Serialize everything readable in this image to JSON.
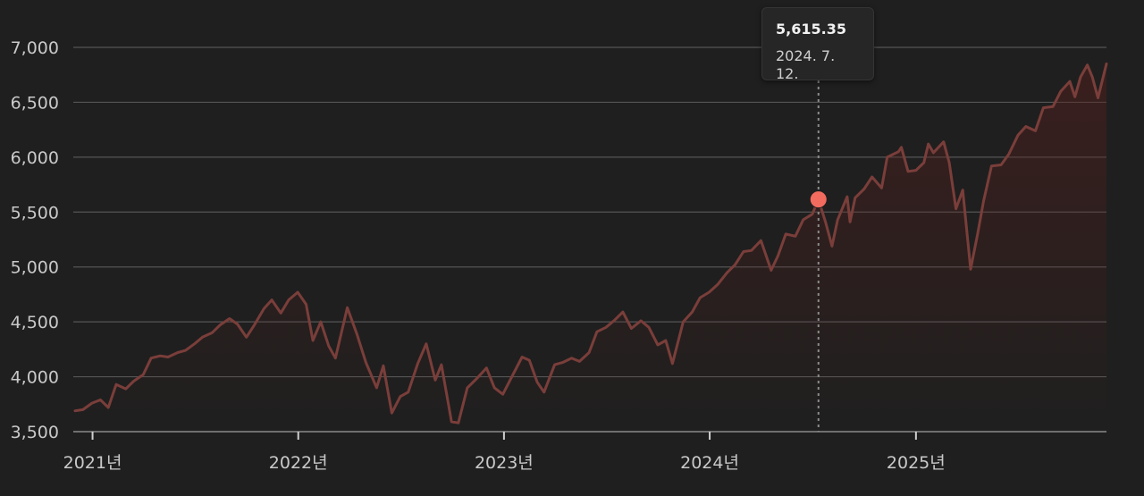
{
  "chart_data": {
    "type": "area",
    "y_ticks": [
      "7,000",
      "6,500",
      "6,000",
      "5,500",
      "5,000",
      "4,500",
      "4,000",
      "3,500"
    ],
    "x_ticks": [
      "2021년",
      "2022년",
      "2023년",
      "2024년",
      "2025년"
    ],
    "ylim": [
      3500,
      7000
    ],
    "x_range": [
      "2020-12-01",
      "2025-12-05"
    ],
    "grid": true,
    "colors": {
      "line": "#7a3e3a",
      "marker": "#f26b5f",
      "crosshair": "#8a8a8a",
      "grid": "#555555"
    },
    "tooltip": {
      "value": "5,615.35",
      "date": "2024. 7. 12."
    },
    "highlight": {
      "x": "2024-07-12",
      "y": 5615.35
    },
    "series": [
      {
        "points": [
          [
            "2020-12-01",
            3690
          ],
          [
            "2020-12-15",
            3700
          ],
          [
            "2020-12-31",
            3760
          ],
          [
            "2021-01-15",
            3790
          ],
          [
            "2021-01-29",
            3720
          ],
          [
            "2021-02-12",
            3930
          ],
          [
            "2021-03-01",
            3890
          ],
          [
            "2021-03-15",
            3960
          ],
          [
            "2021-04-01",
            4020
          ],
          [
            "2021-04-15",
            4170
          ],
          [
            "2021-05-01",
            4190
          ],
          [
            "2021-05-15",
            4180
          ],
          [
            "2021-06-01",
            4220
          ],
          [
            "2021-06-15",
            4240
          ],
          [
            "2021-07-01",
            4300
          ],
          [
            "2021-07-15",
            4360
          ],
          [
            "2021-08-01",
            4400
          ],
          [
            "2021-08-15",
            4470
          ],
          [
            "2021-09-01",
            4530
          ],
          [
            "2021-09-15",
            4480
          ],
          [
            "2021-10-01",
            4360
          ],
          [
            "2021-10-15",
            4470
          ],
          [
            "2021-11-01",
            4620
          ],
          [
            "2021-11-15",
            4700
          ],
          [
            "2021-12-01",
            4580
          ],
          [
            "2021-12-15",
            4700
          ],
          [
            "2021-12-31",
            4770
          ],
          [
            "2022-01-15",
            4660
          ],
          [
            "2022-01-27",
            4330
          ],
          [
            "2022-02-10",
            4500
          ],
          [
            "2022-02-24",
            4280
          ],
          [
            "2022-03-08",
            4170
          ],
          [
            "2022-03-29",
            4630
          ],
          [
            "2022-04-15",
            4390
          ],
          [
            "2022-05-01",
            4130
          ],
          [
            "2022-05-20",
            3900
          ],
          [
            "2022-06-01",
            4100
          ],
          [
            "2022-06-16",
            3670
          ],
          [
            "2022-07-01",
            3820
          ],
          [
            "2022-07-15",
            3860
          ],
          [
            "2022-08-01",
            4120
          ],
          [
            "2022-08-16",
            4300
          ],
          [
            "2022-09-01",
            3970
          ],
          [
            "2022-09-12",
            4110
          ],
          [
            "2022-09-30",
            3590
          ],
          [
            "2022-10-12",
            3580
          ],
          [
            "2022-10-28",
            3900
          ],
          [
            "2022-11-15",
            3990
          ],
          [
            "2022-12-01",
            4080
          ],
          [
            "2022-12-15",
            3900
          ],
          [
            "2022-12-30",
            3840
          ],
          [
            "2023-01-15",
            4000
          ],
          [
            "2023-02-02",
            4180
          ],
          [
            "2023-02-15",
            4150
          ],
          [
            "2023-03-01",
            3950
          ],
          [
            "2023-03-13",
            3860
          ],
          [
            "2023-04-01",
            4110
          ],
          [
            "2023-04-15",
            4130
          ],
          [
            "2023-05-01",
            4170
          ],
          [
            "2023-05-15",
            4140
          ],
          [
            "2023-06-01",
            4220
          ],
          [
            "2023-06-15",
            4410
          ],
          [
            "2023-07-01",
            4450
          ],
          [
            "2023-07-15",
            4510
          ],
          [
            "2023-07-31",
            4590
          ],
          [
            "2023-08-15",
            4440
          ],
          [
            "2023-09-01",
            4510
          ],
          [
            "2023-09-15",
            4450
          ],
          [
            "2023-10-01",
            4290
          ],
          [
            "2023-10-15",
            4330
          ],
          [
            "2023-10-27",
            4120
          ],
          [
            "2023-11-15",
            4500
          ],
          [
            "2023-12-01",
            4590
          ],
          [
            "2023-12-15",
            4720
          ],
          [
            "2023-12-31",
            4770
          ],
          [
            "2024-01-15",
            4840
          ],
          [
            "2024-02-01",
            4950
          ],
          [
            "2024-02-15",
            5020
          ],
          [
            "2024-03-01",
            5140
          ],
          [
            "2024-03-15",
            5150
          ],
          [
            "2024-04-01",
            5240
          ],
          [
            "2024-04-19",
            4970
          ],
          [
            "2024-05-01",
            5100
          ],
          [
            "2024-05-15",
            5300
          ],
          [
            "2024-06-01",
            5280
          ],
          [
            "2024-06-15",
            5430
          ],
          [
            "2024-07-01",
            5480
          ],
          [
            "2024-07-12",
            5615
          ],
          [
            "2024-07-25",
            5400
          ],
          [
            "2024-08-05",
            5190
          ],
          [
            "2024-08-15",
            5430
          ],
          [
            "2024-09-01",
            5640
          ],
          [
            "2024-09-06",
            5410
          ],
          [
            "2024-09-15",
            5630
          ],
          [
            "2024-10-01",
            5710
          ],
          [
            "2024-10-15",
            5820
          ],
          [
            "2024-11-01",
            5720
          ],
          [
            "2024-11-11",
            6000
          ],
          [
            "2024-12-01",
            6050
          ],
          [
            "2024-12-06",
            6090
          ],
          [
            "2024-12-18",
            5870
          ],
          [
            "2025-01-01",
            5880
          ],
          [
            "2025-01-15",
            5950
          ],
          [
            "2025-01-23",
            6120
          ],
          [
            "2025-02-01",
            6040
          ],
          [
            "2025-02-19",
            6140
          ],
          [
            "2025-03-01",
            5950
          ],
          [
            "2025-03-13",
            5530
          ],
          [
            "2025-03-25",
            5700
          ],
          [
            "2025-04-08",
            4980
          ],
          [
            "2025-04-20",
            5290
          ],
          [
            "2025-05-01",
            5600
          ],
          [
            "2025-05-15",
            5920
          ],
          [
            "2025-06-01",
            5930
          ],
          [
            "2025-06-15",
            6030
          ],
          [
            "2025-07-01",
            6200
          ],
          [
            "2025-07-15",
            6280
          ],
          [
            "2025-08-01",
            6240
          ],
          [
            "2025-08-15",
            6450
          ],
          [
            "2025-09-01",
            6460
          ],
          [
            "2025-09-15",
            6600
          ],
          [
            "2025-10-01",
            6690
          ],
          [
            "2025-10-10",
            6550
          ],
          [
            "2025-10-20",
            6730
          ],
          [
            "2025-11-01",
            6840
          ],
          [
            "2025-11-10",
            6730
          ],
          [
            "2025-11-20",
            6540
          ],
          [
            "2025-12-05",
            6850
          ]
        ]
      }
    ]
  }
}
